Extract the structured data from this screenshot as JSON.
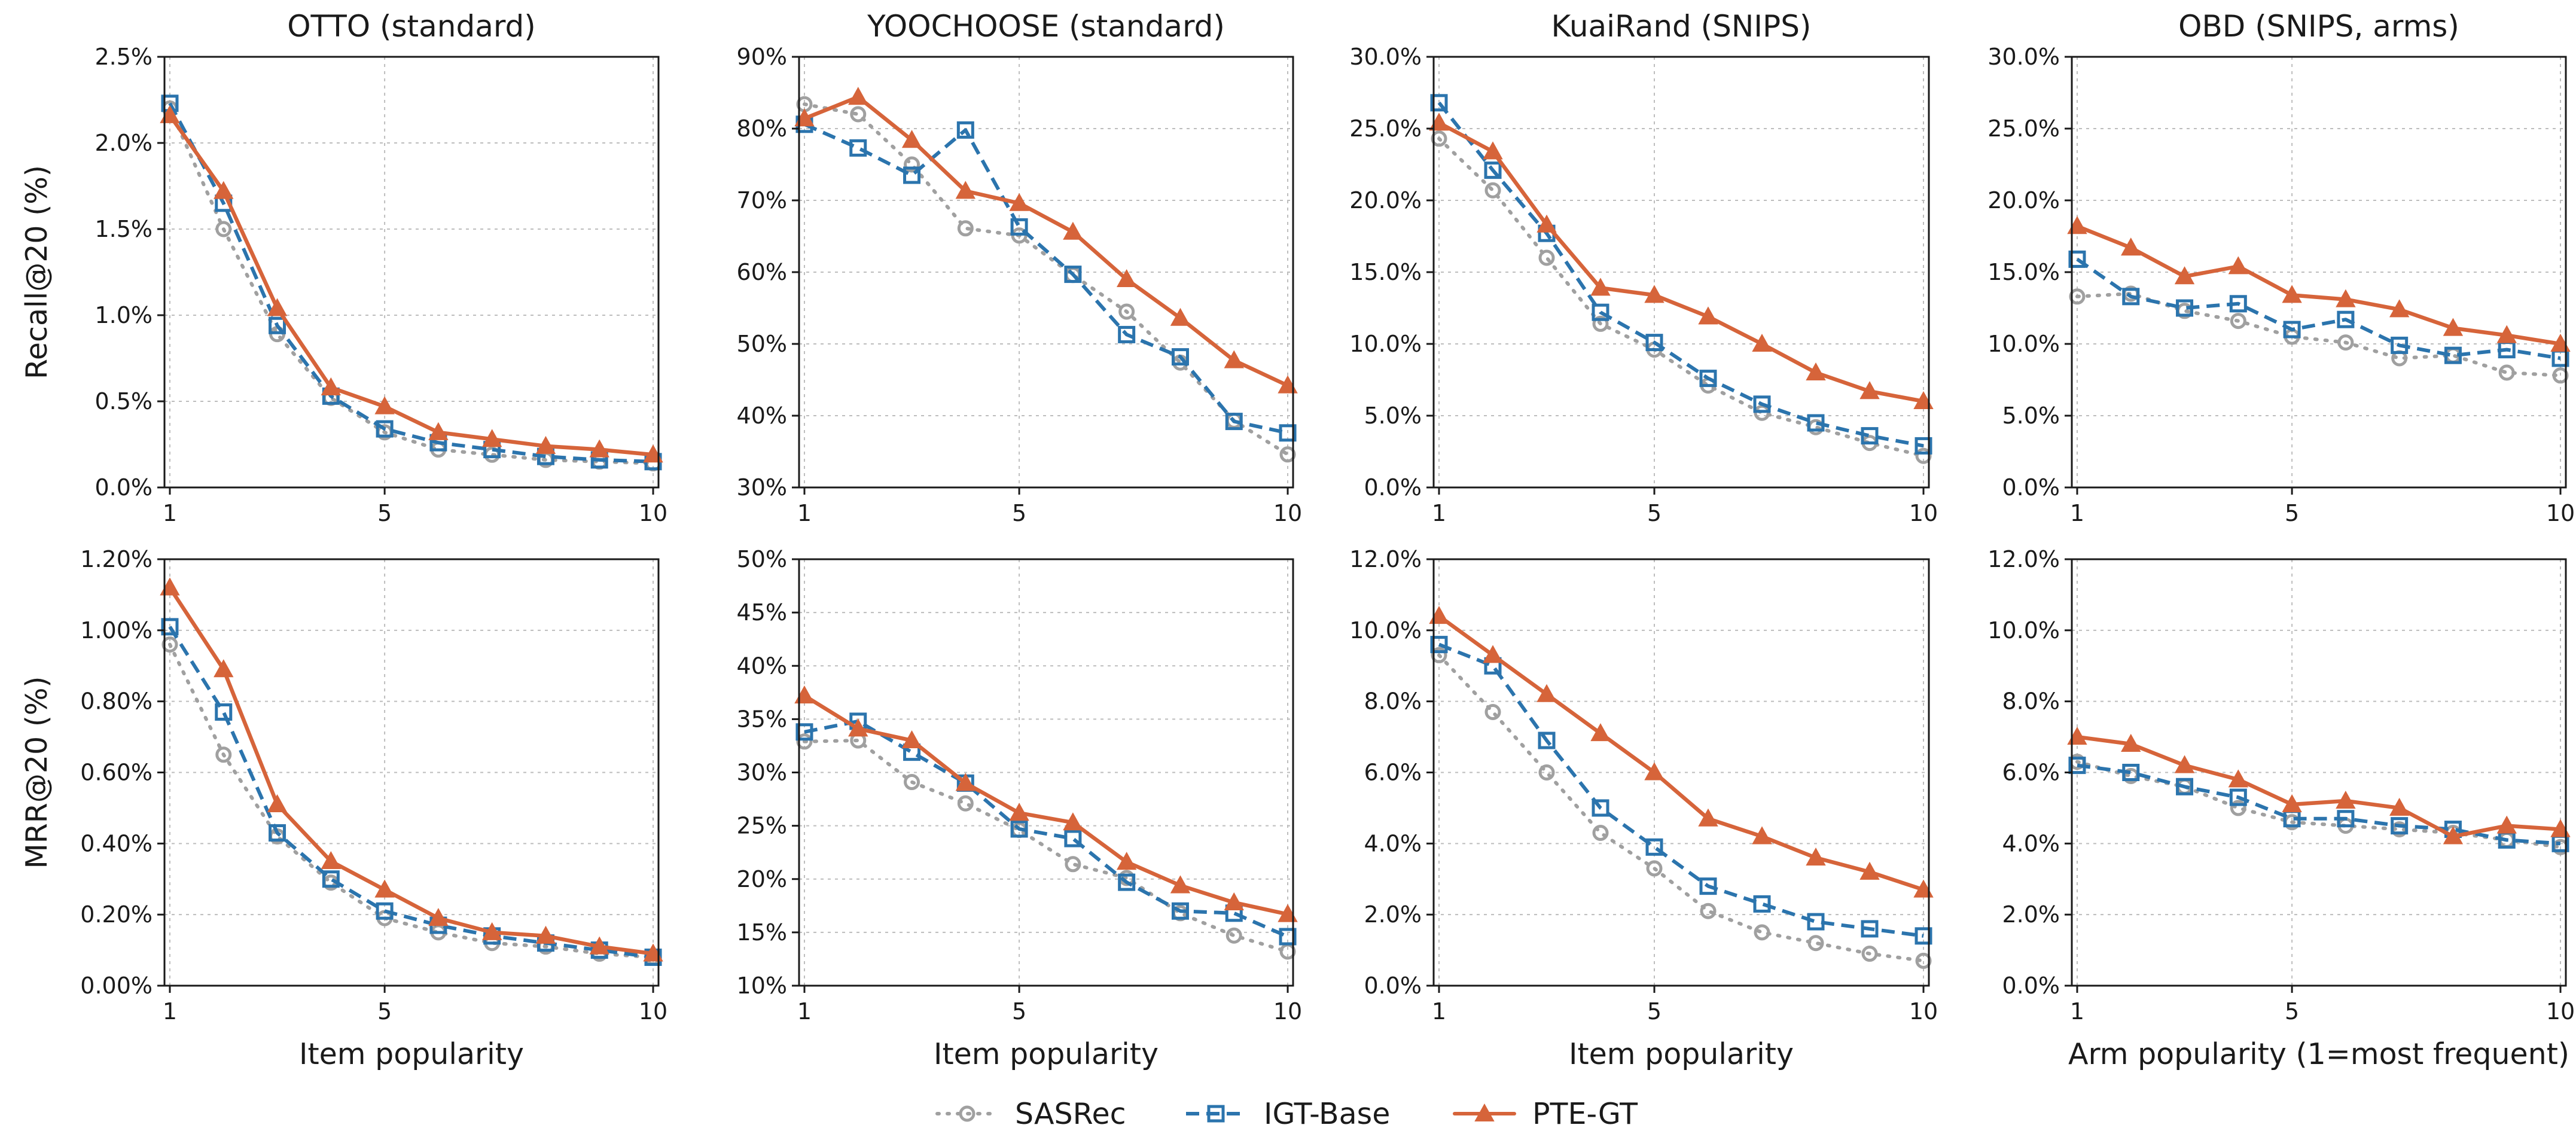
{
  "colors": {
    "SASRec": "#a0a0a0",
    "IGT-Base": "#2b74ad",
    "PTE-GT": "#d6643a",
    "grid": "#bdbdbd",
    "axes": "#1a1a1a"
  },
  "legend": {
    "items": [
      {
        "name": "SASRec",
        "marker": "circle",
        "dash": "dotted"
      },
      {
        "name": "IGT-Base",
        "marker": "square",
        "dash": "dashed"
      },
      {
        "name": "PTE-GT",
        "marker": "triangle",
        "dash": "solid"
      }
    ]
  },
  "chart_data": [
    {
      "type": "line",
      "title": "OTTO (standard)",
      "xlabel": "",
      "ylabel": "Recall@20 (%)",
      "xlim": [
        0.9,
        10.1
      ],
      "ylim": [
        0,
        2.5
      ],
      "yticks": [
        0,
        0.5,
        1.0,
        1.5,
        2.0,
        2.5
      ],
      "ytick_labels": [
        "0.0%",
        "0.5%",
        "1.0%",
        "1.5%",
        "2.0%",
        "2.5%"
      ],
      "xticks": [
        1,
        5,
        10
      ],
      "xtick_labels": [
        "1",
        "5",
        "10"
      ],
      "x": [
        1,
        2,
        3,
        4,
        5,
        6,
        7,
        8,
        9,
        10
      ],
      "series": [
        {
          "name": "SASRec",
          "values": [
            2.2,
            1.5,
            0.89,
            0.52,
            0.32,
            0.22,
            0.19,
            0.16,
            0.15,
            0.14
          ]
        },
        {
          "name": "IGT-Base",
          "values": [
            2.23,
            1.65,
            0.94,
            0.53,
            0.34,
            0.26,
            0.22,
            0.18,
            0.16,
            0.15
          ]
        },
        {
          "name": "PTE-GT",
          "values": [
            2.16,
            1.72,
            1.04,
            0.58,
            0.47,
            0.32,
            0.28,
            0.24,
            0.22,
            0.19
          ]
        }
      ]
    },
    {
      "type": "line",
      "title": "YOOCHOOSE (standard)",
      "xlabel": "",
      "ylabel": "",
      "xlim": [
        0.9,
        10.1
      ],
      "ylim": [
        30,
        90
      ],
      "yticks": [
        30,
        40,
        50,
        60,
        70,
        80,
        90
      ],
      "ytick_labels": [
        "30%",
        "40%",
        "50%",
        "60%",
        "70%",
        "80%",
        "90%"
      ],
      "xticks": [
        1,
        5,
        10
      ],
      "xtick_labels": [
        "1",
        "5",
        "10"
      ],
      "x": [
        1,
        2,
        3,
        4,
        5,
        6,
        7,
        8,
        9,
        10
      ],
      "series": [
        {
          "name": "SASRec",
          "values": [
            83.4,
            82.0,
            75.0,
            66.1,
            65.1,
            59.6,
            54.5,
            47.4,
            39.3,
            34.6
          ]
        },
        {
          "name": "IGT-Base",
          "values": [
            80.6,
            77.3,
            73.5,
            79.8,
            66.3,
            59.7,
            51.3,
            48.2,
            39.2,
            37.6
          ]
        },
        {
          "name": "PTE-GT",
          "values": [
            81.4,
            84.4,
            78.4,
            71.3,
            69.6,
            65.6,
            59.0,
            53.6,
            47.7,
            44.2
          ]
        }
      ]
    },
    {
      "type": "line",
      "title": "KuaiRand (SNIPS)",
      "xlabel": "",
      "ylabel": "",
      "xlim": [
        0.9,
        10.1
      ],
      "ylim": [
        0,
        30
      ],
      "yticks": [
        0,
        5,
        10,
        15,
        20,
        25,
        30
      ],
      "ytick_labels": [
        "0.0%",
        "5.0%",
        "10.0%",
        "15.0%",
        "20.0%",
        "25.0%",
        "30.0%"
      ],
      "xticks": [
        1,
        5,
        10
      ],
      "xtick_labels": [
        "1",
        "5",
        "10"
      ],
      "x": [
        1,
        2,
        3,
        4,
        5,
        6,
        7,
        8,
        9,
        10
      ],
      "series": [
        {
          "name": "SASRec",
          "values": [
            24.3,
            20.7,
            16.0,
            11.4,
            9.6,
            7.1,
            5.2,
            4.2,
            3.1,
            2.2
          ]
        },
        {
          "name": "IGT-Base",
          "values": [
            26.8,
            22.1,
            17.7,
            12.2,
            10.1,
            7.6,
            5.8,
            4.5,
            3.6,
            2.9
          ]
        },
        {
          "name": "PTE-GT",
          "values": [
            25.4,
            23.4,
            18.3,
            13.9,
            13.4,
            11.9,
            10.0,
            8.0,
            6.7,
            6.0
          ]
        }
      ]
    },
    {
      "type": "line",
      "title": "OBD (SNIPS, arms)",
      "xlabel": "",
      "ylabel": "",
      "xlim": [
        0.9,
        10.1
      ],
      "ylim": [
        0,
        30
      ],
      "yticks": [
        0,
        5,
        10,
        15,
        20,
        25,
        30
      ],
      "ytick_labels": [
        "0.0%",
        "5.0%",
        "10.0%",
        "15.0%",
        "20.0%",
        "25.0%",
        "30.0%"
      ],
      "xticks": [
        1,
        5,
        10
      ],
      "xtick_labels": [
        "1",
        "5",
        "10"
      ],
      "x": [
        1,
        2,
        3,
        4,
        5,
        6,
        7,
        8,
        9,
        10
      ],
      "series": [
        {
          "name": "SASRec",
          "values": [
            13.3,
            13.5,
            12.3,
            11.6,
            10.5,
            10.1,
            9.0,
            9.2,
            8.0,
            7.8
          ]
        },
        {
          "name": "IGT-Base",
          "values": [
            15.9,
            13.3,
            12.5,
            12.8,
            11.0,
            11.7,
            9.9,
            9.2,
            9.6,
            9.0
          ]
        },
        {
          "name": "PTE-GT",
          "values": [
            18.2,
            16.7,
            14.7,
            15.4,
            13.4,
            13.1,
            12.4,
            11.1,
            10.6,
            10.0
          ]
        }
      ]
    },
    {
      "type": "line",
      "title": "",
      "xlabel": "Item popularity",
      "ylabel": "MRR@20 (%)",
      "xlim": [
        0.9,
        10.1
      ],
      "ylim": [
        0,
        1.2
      ],
      "yticks": [
        0,
        0.2,
        0.4,
        0.6,
        0.8,
        1.0,
        1.2
      ],
      "ytick_labels": [
        "0.00%",
        "0.20%",
        "0.40%",
        "0.60%",
        "0.80%",
        "1.00%",
        "1.20%"
      ],
      "xticks": [
        1,
        5,
        10
      ],
      "xtick_labels": [
        "1",
        "5",
        "10"
      ],
      "x": [
        1,
        2,
        3,
        4,
        5,
        6,
        7,
        8,
        9,
        10
      ],
      "series": [
        {
          "name": "SASRec",
          "values": [
            0.96,
            0.65,
            0.42,
            0.29,
            0.19,
            0.15,
            0.12,
            0.11,
            0.09,
            0.08
          ]
        },
        {
          "name": "IGT-Base",
          "values": [
            1.01,
            0.77,
            0.43,
            0.3,
            0.21,
            0.17,
            0.14,
            0.12,
            0.1,
            0.08
          ]
        },
        {
          "name": "PTE-GT",
          "values": [
            1.12,
            0.89,
            0.51,
            0.35,
            0.27,
            0.19,
            0.15,
            0.14,
            0.11,
            0.09
          ]
        }
      ]
    },
    {
      "type": "line",
      "title": "",
      "xlabel": "Item popularity",
      "ylabel": "",
      "xlim": [
        0.9,
        10.1
      ],
      "ylim": [
        10,
        50
      ],
      "yticks": [
        10,
        15,
        20,
        25,
        30,
        35,
        40,
        45,
        50
      ],
      "ytick_labels": [
        "10%",
        "15%",
        "20%",
        "25%",
        "30%",
        "35%",
        "40%",
        "45%",
        "50%"
      ],
      "xticks": [
        1,
        5,
        10
      ],
      "xtick_labels": [
        "1",
        "5",
        "10"
      ],
      "x": [
        1,
        2,
        3,
        4,
        5,
        6,
        7,
        8,
        9,
        10
      ],
      "series": [
        {
          "name": "SASRec",
          "values": [
            32.9,
            33.0,
            29.1,
            27.1,
            24.6,
            21.4,
            20.1,
            16.8,
            14.7,
            13.2
          ]
        },
        {
          "name": "IGT-Base",
          "values": [
            33.8,
            34.8,
            31.9,
            29.0,
            24.7,
            23.8,
            19.7,
            17.0,
            16.8,
            14.6
          ]
        },
        {
          "name": "PTE-GT",
          "values": [
            37.2,
            34.1,
            33.0,
            29.0,
            26.2,
            25.3,
            21.6,
            19.4,
            17.8,
            16.7
          ]
        }
      ]
    },
    {
      "type": "line",
      "title": "",
      "xlabel": "Item popularity",
      "ylabel": "",
      "xlim": [
        0.9,
        10.1
      ],
      "ylim": [
        0,
        12
      ],
      "yticks": [
        0,
        2,
        4,
        6,
        8,
        10,
        12
      ],
      "ytick_labels": [
        "0.0%",
        "2.0%",
        "4.0%",
        "6.0%",
        "8.0%",
        "10.0%",
        "12.0%"
      ],
      "xticks": [
        1,
        5,
        10
      ],
      "xtick_labels": [
        "1",
        "5",
        "10"
      ],
      "x": [
        1,
        2,
        3,
        4,
        5,
        6,
        7,
        8,
        9,
        10
      ],
      "series": [
        {
          "name": "SASRec",
          "values": [
            9.3,
            7.7,
            6.0,
            4.3,
            3.3,
            2.1,
            1.5,
            1.2,
            0.9,
            0.7
          ]
        },
        {
          "name": "IGT-Base",
          "values": [
            9.6,
            9.0,
            6.9,
            5.0,
            3.9,
            2.8,
            2.3,
            1.8,
            1.6,
            1.4
          ]
        },
        {
          "name": "PTE-GT",
          "values": [
            10.4,
            9.3,
            8.2,
            7.1,
            6.0,
            4.7,
            4.2,
            3.6,
            3.2,
            2.7
          ]
        }
      ]
    },
    {
      "type": "line",
      "title": "",
      "xlabel": "Arm popularity (1=most frequent)",
      "ylabel": "",
      "xlim": [
        0.9,
        10.1
      ],
      "ylim": [
        0,
        12
      ],
      "yticks": [
        0,
        2,
        4,
        6,
        8,
        10,
        12
      ],
      "ytick_labels": [
        "0.0%",
        "2.0%",
        "4.0%",
        "6.0%",
        "8.0%",
        "10.0%",
        "12.0%"
      ],
      "xticks": [
        1,
        5,
        10
      ],
      "xtick_labels": [
        "1",
        "5",
        "10"
      ],
      "x": [
        1,
        2,
        3,
        4,
        5,
        6,
        7,
        8,
        9,
        10
      ],
      "series": [
        {
          "name": "SASRec",
          "values": [
            6.3,
            5.9,
            5.6,
            5.0,
            4.6,
            4.5,
            4.4,
            4.3,
            4.1,
            3.9
          ]
        },
        {
          "name": "IGT-Base",
          "values": [
            6.2,
            6.0,
            5.6,
            5.3,
            4.7,
            4.7,
            4.5,
            4.4,
            4.1,
            4.0
          ]
        },
        {
          "name": "PTE-GT",
          "values": [
            7.0,
            6.8,
            6.2,
            5.8,
            5.1,
            5.2,
            5.0,
            4.2,
            4.5,
            4.4
          ]
        }
      ]
    }
  ]
}
